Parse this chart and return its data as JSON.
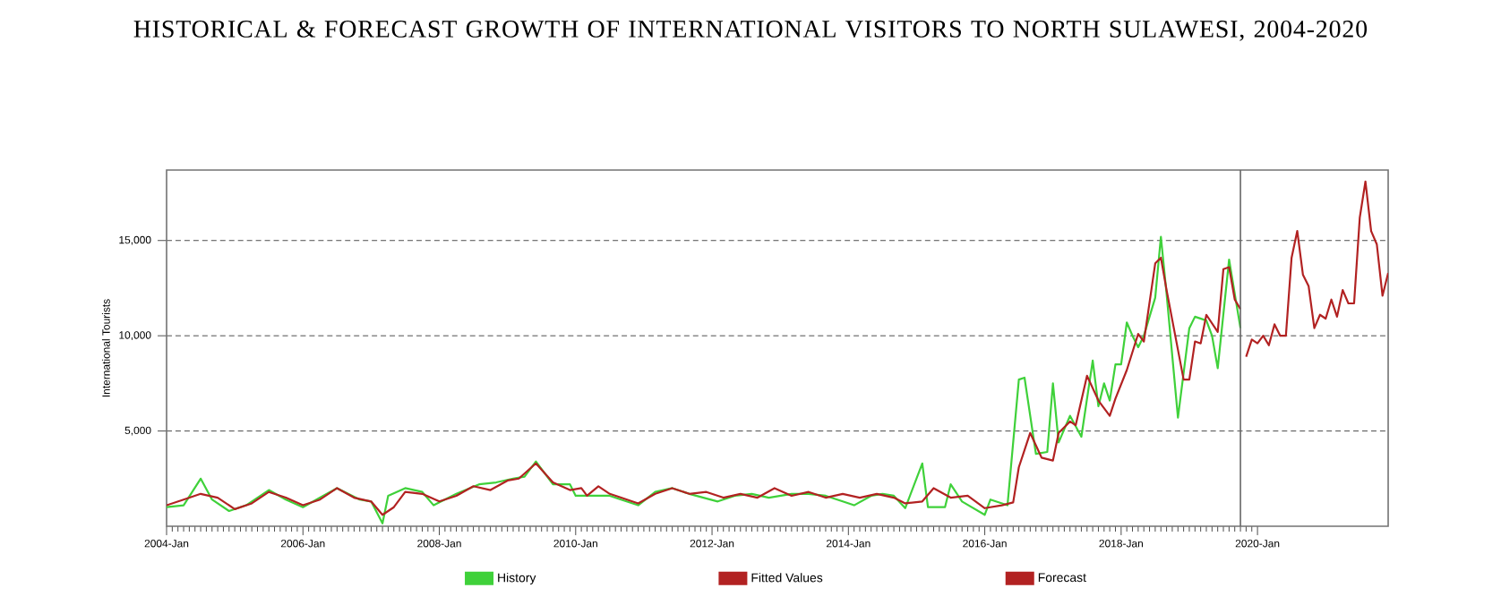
{
  "chart_data": {
    "type": "line",
    "title": "HISTORICAL & FORECAST GROWTH OF INTERNATIONAL VISITORS TO NORTH SULAWESI, 2004-2020",
    "ylabel": "International Tourists",
    "xlim": [
      "2004-01",
      "2021-12"
    ],
    "ylim": [
      0,
      18700
    ],
    "xticks": [
      {
        "value": "2004-01",
        "label": "2004-Jan"
      },
      {
        "value": "2006-01",
        "label": "2006-Jan"
      },
      {
        "value": "2008-01",
        "label": "2008-Jan"
      },
      {
        "value": "2010-01",
        "label": "2010-Jan"
      },
      {
        "value": "2012-01",
        "label": "2012-Jan"
      },
      {
        "value": "2014-01",
        "label": "2014-Jan"
      },
      {
        "value": "2016-01",
        "label": "2016-Jan"
      },
      {
        "value": "2018-01",
        "label": "2018-Jan"
      },
      {
        "value": "2020-01",
        "label": "2020-Jan"
      }
    ],
    "yticks": [
      {
        "value": 5000,
        "label": "5,000"
      },
      {
        "value": 10000,
        "label": "10,000"
      },
      {
        "value": 15000,
        "label": "15,000"
      }
    ],
    "grid": "y",
    "legend": "bottom",
    "marker": "none",
    "ref_lines": [
      {
        "axis": "x",
        "value": "2019-10",
        "color": "#666666"
      }
    ],
    "series": [
      {
        "name": "History",
        "color": "#3fd13a",
        "x": [
          "2004-01",
          "2004-04",
          "2004-07",
          "2004-09",
          "2004-12",
          "2005-03",
          "2005-07",
          "2005-10",
          "2006-01",
          "2006-04",
          "2006-07",
          "2006-11",
          "2007-01",
          "2007-03",
          "2007-04",
          "2007-07",
          "2007-10",
          "2007-12",
          "2008-04",
          "2008-08",
          "2008-11",
          "2009-02",
          "2009-04",
          "2009-06",
          "2009-09",
          "2009-12",
          "2010-01",
          "2010-04",
          "2010-07",
          "2010-09",
          "2010-12",
          "2011-03",
          "2011-06",
          "2011-09",
          "2012-02",
          "2012-05",
          "2012-08",
          "2012-11",
          "2013-03",
          "2013-06",
          "2013-09",
          "2013-12",
          "2014-02",
          "2014-05",
          "2014-07",
          "2014-09",
          "2014-11",
          "2015-02",
          "2015-03",
          "2015-06",
          "2015-07",
          "2015-09",
          "2016-01",
          "2016-02",
          "2016-05",
          "2016-07",
          "2016-08",
          "2016-10",
          "2016-12",
          "2017-01",
          "2017-02",
          "2017-04",
          "2017-06",
          "2017-08",
          "2017-09",
          "2017-10",
          "2017-11",
          "2017-12",
          "2018-01",
          "2018-02",
          "2018-03",
          "2018-04",
          "2018-05",
          "2018-07",
          "2018-08",
          "2018-09",
          "2018-11",
          "2019-01",
          "2019-02",
          "2019-04",
          "2019-05",
          "2019-06",
          "2019-08",
          "2019-09",
          "2019-10"
        ],
        "values": [
          1000,
          1100,
          2500,
          1400,
          800,
          1100,
          1900,
          1400,
          1000,
          1500,
          2000,
          1400,
          1300,
          150,
          1600,
          2000,
          1800,
          1100,
          1700,
          2200,
          2300,
          2500,
          2600,
          3400,
          2200,
          2200,
          1600,
          1600,
          1600,
          1400,
          1100,
          1800,
          2000,
          1700,
          1300,
          1600,
          1700,
          1500,
          1700,
          1700,
          1600,
          1300,
          1100,
          1600,
          1700,
          1600,
          950,
          3300,
          1000,
          1000,
          2200,
          1300,
          600,
          1400,
          1100,
          7700,
          7800,
          3800,
          3900,
          7500,
          4400,
          5800,
          4700,
          8700,
          6300,
          7500,
          6600,
          8500,
          8500,
          10700,
          10000,
          9400,
          10000,
          12000,
          15200,
          12200,
          5700,
          10400,
          11000,
          10800,
          10000,
          8300,
          14000,
          12200,
          10400
        ]
      },
      {
        "name": "Fitted Values",
        "color": "#b22222",
        "x": [
          "2004-01",
          "2004-04",
          "2004-07",
          "2004-10",
          "2005-01",
          "2005-04",
          "2005-07",
          "2005-10",
          "2006-01",
          "2006-04",
          "2006-07",
          "2006-10",
          "2007-01",
          "2007-03",
          "2007-05",
          "2007-07",
          "2007-10",
          "2008-01",
          "2008-04",
          "2008-07",
          "2008-10",
          "2009-01",
          "2009-03",
          "2009-06",
          "2009-09",
          "2009-12",
          "2010-02",
          "2010-03",
          "2010-05",
          "2010-07",
          "2010-09",
          "2010-12",
          "2011-03",
          "2011-06",
          "2011-09",
          "2011-12",
          "2012-03",
          "2012-06",
          "2012-09",
          "2012-12",
          "2013-03",
          "2013-06",
          "2013-09",
          "2013-12",
          "2014-03",
          "2014-06",
          "2014-09",
          "2014-11",
          "2015-02",
          "2015-04",
          "2015-07",
          "2015-10",
          "2016-01",
          "2016-04",
          "2016-06",
          "2016-07",
          "2016-09",
          "2016-11",
          "2017-01",
          "2017-02",
          "2017-04",
          "2017-05",
          "2017-07",
          "2017-09",
          "2017-11",
          "2017-12",
          "2018-02",
          "2018-04",
          "2018-05",
          "2018-07",
          "2018-08",
          "2018-09",
          "2018-12",
          "2019-01",
          "2019-02",
          "2019-03",
          "2019-04",
          "2019-06",
          "2019-07",
          "2019-08",
          "2019-09",
          "2019-10"
        ],
        "values": [
          1100,
          1400,
          1700,
          1500,
          900,
          1200,
          1800,
          1500,
          1100,
          1400,
          2000,
          1500,
          1300,
          600,
          1000,
          1800,
          1700,
          1300,
          1600,
          2100,
          1900,
          2400,
          2500,
          3300,
          2300,
          1900,
          2000,
          1600,
          2100,
          1700,
          1500,
          1200,
          1700,
          2000,
          1700,
          1800,
          1500,
          1700,
          1500,
          2000,
          1600,
          1800,
          1500,
          1700,
          1500,
          1700,
          1500,
          1200,
          1300,
          2000,
          1500,
          1600,
          950,
          1100,
          1250,
          3100,
          4900,
          3600,
          3450,
          4900,
          5500,
          5300,
          7900,
          6600,
          5800,
          6700,
          8200,
          10100,
          9700,
          13800,
          14100,
          12400,
          7700,
          7700,
          9700,
          9600,
          11100,
          10200,
          13500,
          13600,
          11900,
          11400
        ]
      },
      {
        "name": "Forecast",
        "color": "#b22222",
        "x": [
          "2019-11",
          "2019-12",
          "2020-01",
          "2020-02",
          "2020-03",
          "2020-04",
          "2020-05",
          "2020-06",
          "2020-07",
          "2020-08",
          "2020-09",
          "2020-10",
          "2020-11",
          "2020-12",
          "2021-01",
          "2021-02",
          "2021-03",
          "2021-04",
          "2021-05",
          "2021-06",
          "2021-07",
          "2021-08",
          "2021-09",
          "2021-10",
          "2021-11",
          "2021-12"
        ],
        "values": [
          8900,
          9800,
          9600,
          10000,
          9500,
          10600,
          10000,
          10000,
          14100,
          15500,
          13200,
          12600,
          10400,
          11100,
          10900,
          11900,
          11000,
          12400,
          11700,
          11700,
          16200,
          18100,
          15500,
          14800,
          12100,
          13300
        ]
      }
    ]
  }
}
